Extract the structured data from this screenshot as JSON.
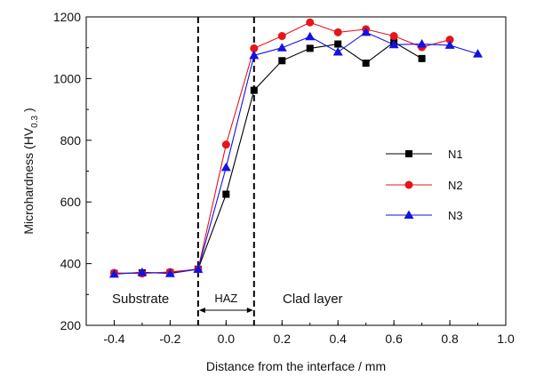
{
  "chart_data": {
    "type": "line",
    "xlabel": "Distance from the interface / mm",
    "ylabel_main": "Microhardness",
    "ylabel_unit": "HV",
    "ylabel_sub": "0.3",
    "xlim": [
      -0.5,
      1.0
    ],
    "ylim": [
      200,
      1200
    ],
    "xticks": [
      -0.4,
      -0.2,
      0.0,
      0.2,
      0.4,
      0.6,
      0.8,
      1.0
    ],
    "xtick_labels": [
      "-0.4",
      "-0.2",
      "0.0",
      "0.2",
      "0.4",
      "0.6",
      "0.8",
      "1.0"
    ],
    "yticks": [
      200,
      400,
      600,
      800,
      1000,
      1200
    ],
    "ytick_labels": [
      "200",
      "400",
      "600",
      "800",
      "1000",
      "1200"
    ],
    "region_boundaries": [
      -0.1,
      0.1
    ],
    "regions": {
      "substrate": "Substrate",
      "haz": "HAZ",
      "clad": "Clad layer"
    },
    "legend_position": "right-middle",
    "series": [
      {
        "name": "N1",
        "color": "#000000",
        "marker": "square",
        "x": [
          -0.4,
          -0.3,
          -0.2,
          -0.1,
          0.0,
          0.1,
          0.2,
          0.3,
          0.4,
          0.5,
          0.6,
          0.7
        ],
        "y": [
          368,
          370,
          371,
          382,
          625,
          962,
          1058,
          1098,
          1112,
          1050,
          1118,
          1065
        ]
      },
      {
        "name": "N2",
        "color": "#e8141a",
        "marker": "circle",
        "x": [
          -0.4,
          -0.3,
          -0.2,
          -0.1,
          0.0,
          0.1,
          0.2,
          0.3,
          0.4,
          0.5,
          0.6,
          0.7,
          0.8
        ],
        "y": [
          370,
          368,
          373,
          382,
          786,
          1098,
          1138,
          1182,
          1150,
          1160,
          1138,
          1102,
          1126
        ]
      },
      {
        "name": "N3",
        "color": "#1212e6",
        "marker": "triangle",
        "x": [
          -0.4,
          -0.3,
          -0.2,
          -0.1,
          0.0,
          0.1,
          0.2,
          0.3,
          0.4,
          0.5,
          0.6,
          0.7,
          0.8,
          0.9
        ],
        "y": [
          366,
          372,
          368,
          382,
          712,
          1075,
          1100,
          1136,
          1086,
          1150,
          1110,
          1112,
          1108,
          1080
        ]
      }
    ]
  }
}
